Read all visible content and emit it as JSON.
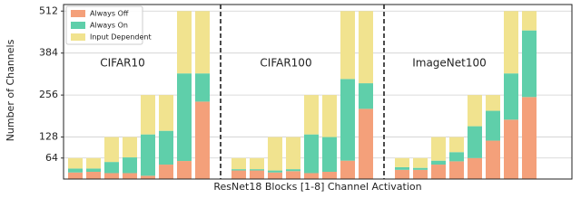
{
  "chart_data": {
    "type": "bar",
    "stacked": true,
    "xlabel": "ResNet18 Blocks [1-8] Channel Activation",
    "ylabel": "Number of Channels",
    "group_labels": [
      "CIFAR10",
      "CIFAR100",
      "ImageNet100"
    ],
    "categories": [
      null,
      null,
      null,
      null,
      null,
      null,
      null,
      null,
      null,
      null,
      null,
      null,
      null,
      null,
      null,
      null,
      null,
      null,
      null,
      null,
      null,
      null,
      null,
      null
    ],
    "series": [
      {
        "name": "Always Off",
        "color": "#f4a07a",
        "values": [
          20,
          22,
          18,
          18,
          10,
          44,
          55,
          236,
          26,
          26,
          20,
          24,
          18,
          22,
          56,
          214,
          28,
          28,
          44,
          54,
          64,
          117,
          181,
          250
        ]
      },
      {
        "name": "Always On",
        "color": "#5fcfaa",
        "values": [
          12,
          10,
          34,
          48,
          126,
          103,
          267,
          86,
          4,
          4,
          6,
          6,
          118,
          106,
          249,
          78,
          8,
          6,
          12,
          28,
          97,
          91,
          141,
          203
        ]
      },
      {
        "name": "Input Dependent",
        "color": "#f1e38f",
        "values": [
          32,
          32,
          76,
          62,
          120,
          109,
          190,
          190,
          34,
          34,
          102,
          98,
          120,
          128,
          207,
          220,
          28,
          30,
          72,
          46,
          95,
          48,
          190,
          59
        ]
      }
    ],
    "ylim": [
      0,
      532
    ],
    "yticks": [
      64,
      128,
      256,
      384,
      512
    ],
    "grid": true,
    "legend": "upper left"
  }
}
